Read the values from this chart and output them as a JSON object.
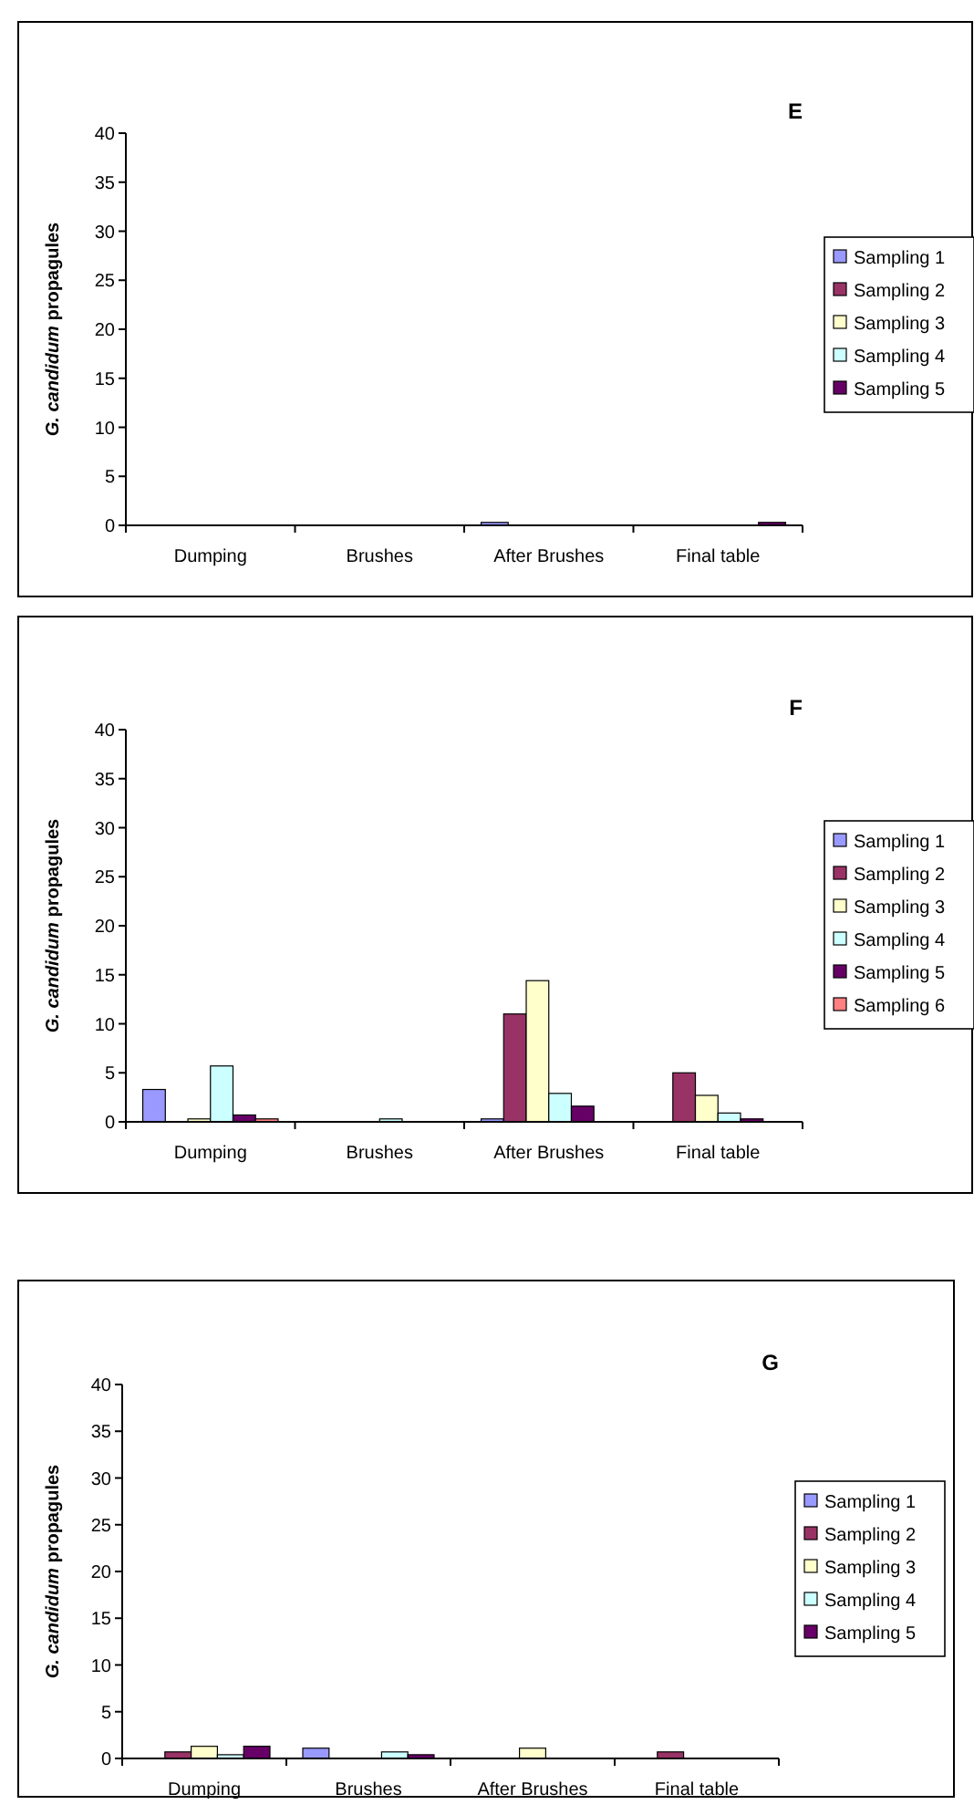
{
  "chart_data": [
    {
      "type": "bar",
      "title": "E",
      "ylabel": "G. candidum propagules",
      "categories": [
        "Dumping",
        "Brushes",
        "After Brushes",
        "Final table"
      ],
      "ylim": [
        0,
        40
      ],
      "yticks": [
        0,
        5,
        10,
        15,
        20,
        25,
        30,
        35,
        40
      ],
      "grid": false,
      "legend": "right",
      "series": [
        {
          "name": "Sampling 1",
          "color": "#9999ff",
          "values": [
            0,
            0,
            0.3,
            0
          ]
        },
        {
          "name": "Sampling 2",
          "color": "#993366",
          "values": [
            0,
            0,
            0,
            0
          ]
        },
        {
          "name": "Sampling 3",
          "color": "#ffffcc",
          "values": [
            0,
            0,
            0,
            0
          ]
        },
        {
          "name": "Sampling 4",
          "color": "#ccffff",
          "values": [
            0,
            0,
            0,
            0
          ]
        },
        {
          "name": "Sampling 5",
          "color": "#660066",
          "values": [
            0,
            0,
            0,
            0.3
          ]
        }
      ]
    },
    {
      "type": "bar",
      "title": "F",
      "ylabel": "G. candidum propagules",
      "categories": [
        "Dumping",
        "Brushes",
        "After Brushes",
        "Final table"
      ],
      "ylim": [
        0,
        40
      ],
      "yticks": [
        0,
        5,
        10,
        15,
        20,
        25,
        30,
        35,
        40
      ],
      "grid": false,
      "legend": "right",
      "series": [
        {
          "name": "Sampling 1",
          "color": "#9999ff",
          "values": [
            3.3,
            0,
            0.3,
            0
          ]
        },
        {
          "name": "Sampling 2",
          "color": "#993366",
          "values": [
            0,
            0,
            11,
            5
          ]
        },
        {
          "name": "Sampling 3",
          "color": "#ffffcc",
          "values": [
            0.3,
            0,
            14.4,
            2.7
          ]
        },
        {
          "name": "Sampling 4",
          "color": "#ccffff",
          "values": [
            5.7,
            0.3,
            2.9,
            0.9
          ]
        },
        {
          "name": "Sampling 5",
          "color": "#660066",
          "values": [
            0.7,
            0,
            1.6,
            0.3
          ]
        },
        {
          "name": "Sampling 6",
          "color": "#ff8080",
          "values": [
            0.3,
            0,
            0,
            0
          ]
        }
      ]
    },
    {
      "type": "bar",
      "title": "G",
      "ylabel": "G. candidum propagules",
      "categories": [
        "Dumping",
        "Brushes",
        "After Brushes",
        "Final table"
      ],
      "ylim": [
        0,
        40
      ],
      "yticks": [
        0,
        5,
        10,
        15,
        20,
        25,
        30,
        35,
        40
      ],
      "grid": false,
      "legend": "right",
      "series": [
        {
          "name": "Sampling 1",
          "color": "#9999ff",
          "values": [
            0,
            1.1,
            0,
            0
          ]
        },
        {
          "name": "Sampling 2",
          "color": "#993366",
          "values": [
            0.7,
            0,
            0,
            0.7
          ]
        },
        {
          "name": "Sampling 3",
          "color": "#ffffcc",
          "values": [
            1.3,
            0,
            1.1,
            0
          ]
        },
        {
          "name": "Sampling 4",
          "color": "#ccffff",
          "values": [
            0.4,
            0.7,
            0,
            0
          ]
        },
        {
          "name": "Sampling 5",
          "color": "#660066",
          "values": [
            1.3,
            0.4,
            0,
            0
          ]
        }
      ]
    }
  ]
}
